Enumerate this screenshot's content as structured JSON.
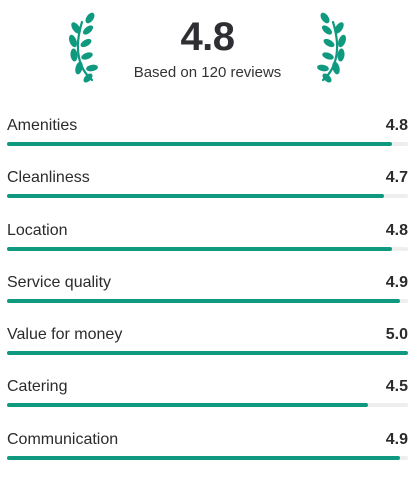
{
  "summary": {
    "score": "4.8",
    "reviews_text": "Based on 120 reviews",
    "laurel_icon": "laurel-wreath-icon"
  },
  "colors": {
    "accent": "#0f9a7f",
    "track": "#eeeeee",
    "text": "#2b2b2b"
  },
  "max_score": 5.0,
  "ratings": [
    {
      "label": "Amenities",
      "value": "4.8",
      "score": 4.8
    },
    {
      "label": "Cleanliness",
      "value": "4.7",
      "score": 4.7
    },
    {
      "label": "Location",
      "value": "4.8",
      "score": 4.8
    },
    {
      "label": "Service quality",
      "value": "4.9",
      "score": 4.9
    },
    {
      "label": "Value for money",
      "value": "5.0",
      "score": 5.0
    },
    {
      "label": "Catering",
      "value": "4.5",
      "score": 4.5
    },
    {
      "label": "Communication",
      "value": "4.9",
      "score": 4.9
    }
  ]
}
